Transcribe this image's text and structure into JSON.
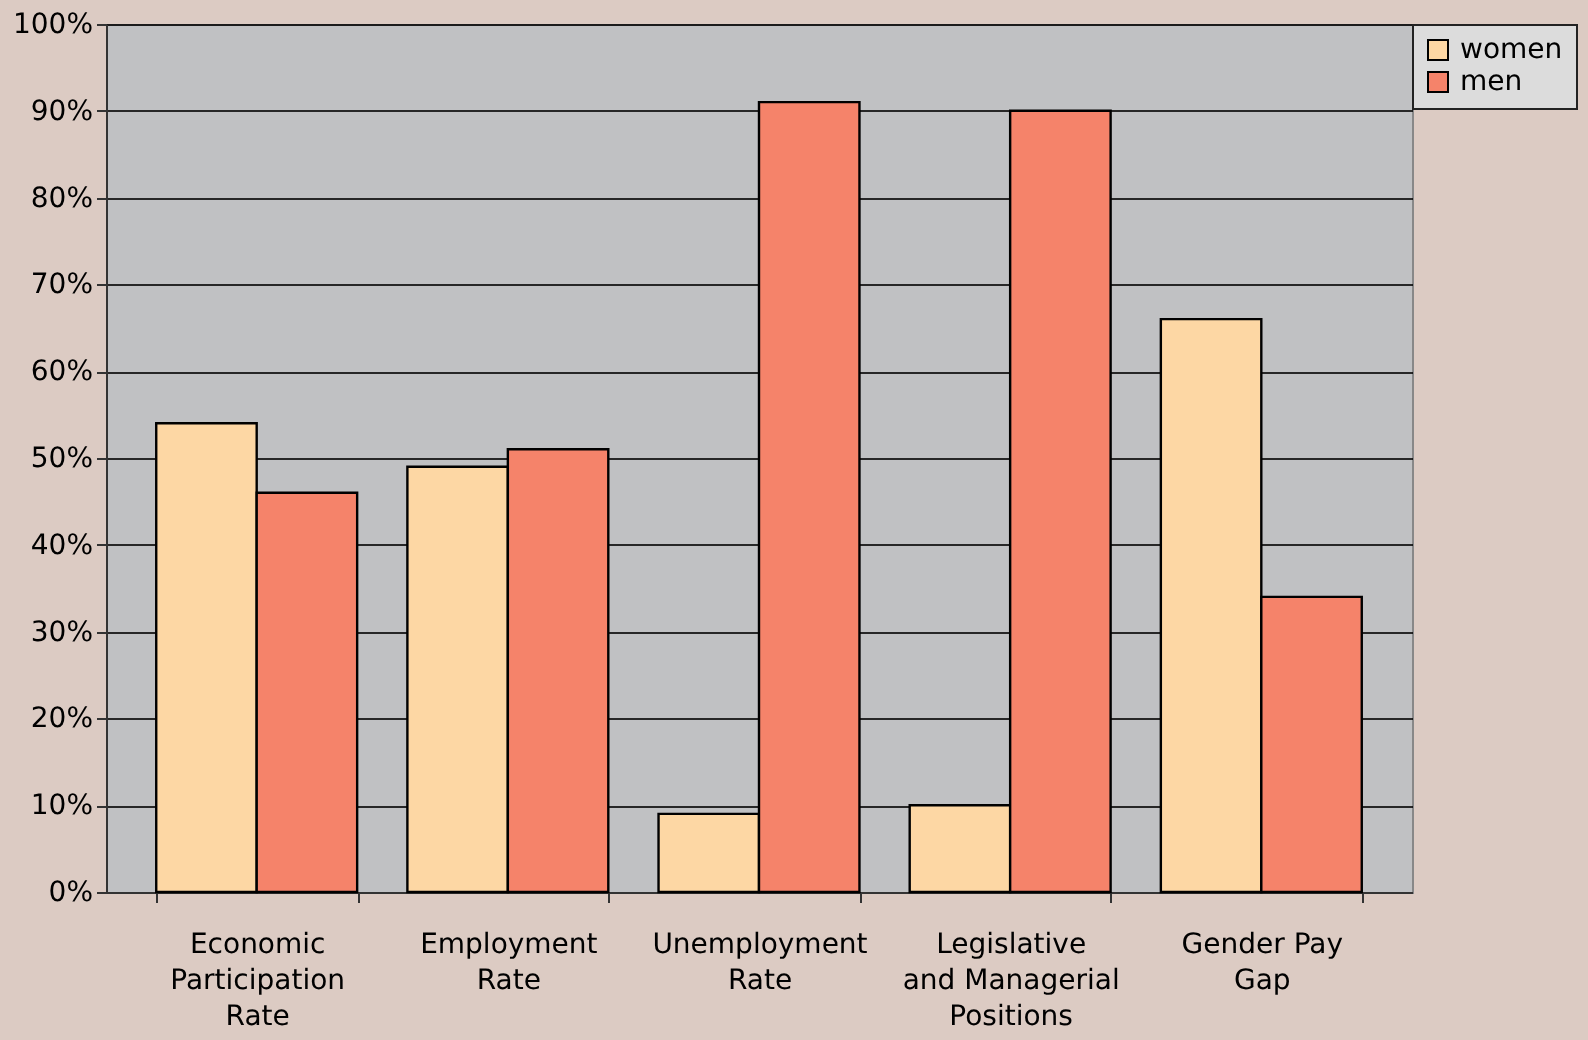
{
  "chart_data": {
    "type": "bar",
    "categories": [
      "Economic\nParticipation\nRate",
      "Employment\nRate",
      "Unemployment\nRate",
      "Legislative\nand Managerial\nPositions",
      "Gender Pay\nGap"
    ],
    "series": [
      {
        "name": "women",
        "color": "#fdd7a4",
        "values": [
          54,
          49,
          9,
          10,
          66
        ]
      },
      {
        "name": "men",
        "color": "#f5836a",
        "values": [
          46,
          51,
          91,
          90,
          34
        ]
      }
    ],
    "ylim": [
      0,
      100
    ],
    "yticks": [
      {
        "value": 0,
        "label": "0%"
      },
      {
        "value": 10,
        "label": "10%"
      },
      {
        "value": 20,
        "label": "20%"
      },
      {
        "value": 30,
        "label": "30%"
      },
      {
        "value": 40,
        "label": "40%"
      },
      {
        "value": 50,
        "label": "50%"
      },
      {
        "value": 60,
        "label": "60%"
      },
      {
        "value": 70,
        "label": "70%"
      },
      {
        "value": 80,
        "label": "80%"
      },
      {
        "value": 90,
        "label": "90%"
      },
      {
        "value": 100,
        "label": "100%"
      }
    ],
    "grid": "y",
    "legend": "right"
  }
}
